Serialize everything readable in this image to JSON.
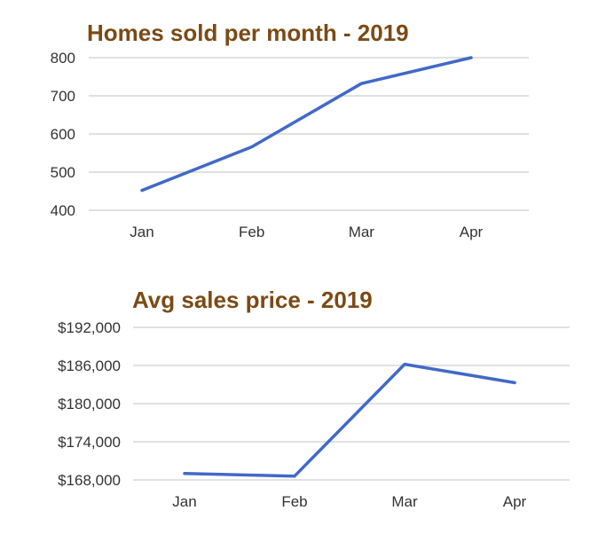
{
  "chart_data": [
    {
      "type": "line",
      "title": "Homes sold per month - 2019",
      "categories": [
        "Jan",
        "Feb",
        "Mar",
        "Apr"
      ],
      "series": [
        {
          "values": [
            452,
            566,
            732,
            800
          ]
        }
      ],
      "yticks": [
        "800",
        "700",
        "600",
        "500",
        "400"
      ],
      "ytick_values": [
        800,
        700,
        600,
        500,
        400
      ],
      "ylim": [
        400,
        800
      ],
      "grid": true,
      "line_color": "#4169c8",
      "title_color": "#7b4a14"
    },
    {
      "type": "line",
      "title": "Avg sales price - 2019",
      "categories": [
        "Jan",
        "Feb",
        "Mar",
        "Apr"
      ],
      "series": [
        {
          "values": [
            169000,
            168600,
            186200,
            183300
          ]
        }
      ],
      "yticks": [
        "$192,000",
        "$186,000",
        "$180,000",
        "$174,000",
        "$168,000"
      ],
      "ytick_values": [
        192000,
        186000,
        180000,
        174000,
        168000
      ],
      "ylim": [
        168000,
        192000
      ],
      "grid": true,
      "line_color": "#4169c8",
      "title_color": "#7b4a14"
    }
  ]
}
